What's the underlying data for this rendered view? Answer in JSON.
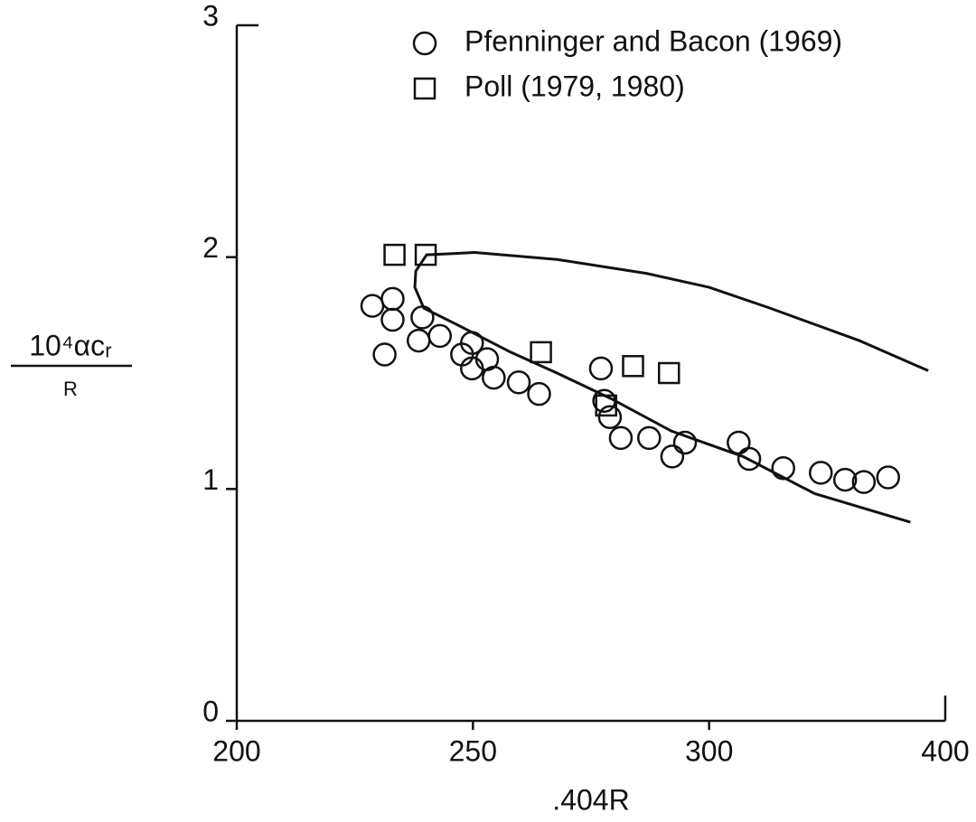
{
  "chart_data": {
    "type": "scatter",
    "xlabel": ".404R",
    "ylabel": {
      "numerator": "10⁴αcᵣ",
      "denominator": "R"
    },
    "xlim": [
      200,
      400
    ],
    "xticks": [
      200,
      250,
      300,
      400
    ],
    "ylim": [
      0,
      3
    ],
    "yticks": [
      0,
      1,
      2,
      3
    ],
    "legend": "upper right",
    "series": [
      {
        "name": "Pfenninger and Bacon (1969)",
        "marker": "circle",
        "color": "#111111",
        "x": [
          228.7,
          231.3,
          233.0,
          233.0,
          238.5,
          239.3,
          243.0,
          247.7,
          249.8,
          249.8,
          253.0,
          254.4,
          259.7,
          264.0,
          277.1,
          277.8,
          279.0,
          281.3,
          287.3,
          292.2,
          294.9,
          312.5,
          317.0,
          331.4,
          347.3,
          357.6,
          365.5,
          375.8
        ],
        "values": [
          1.79,
          1.58,
          1.82,
          1.73,
          1.64,
          1.74,
          1.66,
          1.58,
          1.63,
          1.52,
          1.56,
          1.48,
          1.46,
          1.41,
          1.52,
          1.38,
          1.31,
          1.22,
          1.22,
          1.14,
          1.2,
          1.2,
          1.13,
          1.09,
          1.07,
          1.04,
          1.03,
          1.05
        ]
      },
      {
        "name": "Poll (1979, 1980)",
        "marker": "square",
        "color": "#111111",
        "x": [
          233.4,
          240.0,
          264.4,
          278.2,
          283.9,
          291.5
        ],
        "values": [
          2.01,
          2.01,
          1.59,
          1.36,
          1.53,
          1.5
        ]
      },
      {
        "marker": "line",
        "color": "#111111",
        "x": [
          385.2,
          344.7,
          314.4,
          292.0,
          279.2,
          267.8,
          258.0,
          246.5,
          239.6,
          237.7,
          237.9,
          240.2,
          250.4,
          267.8,
          286.7,
          300,
          325.8,
          363.6,
          392.8
        ],
        "values": [
          0.857,
          0.98,
          1.14,
          1.25,
          1.39,
          1.5,
          1.59,
          1.71,
          1.78,
          1.87,
          1.94,
          2.01,
          2.02,
          1.99,
          1.93,
          1.87,
          1.78,
          1.64,
          1.51
        ]
      }
    ]
  }
}
